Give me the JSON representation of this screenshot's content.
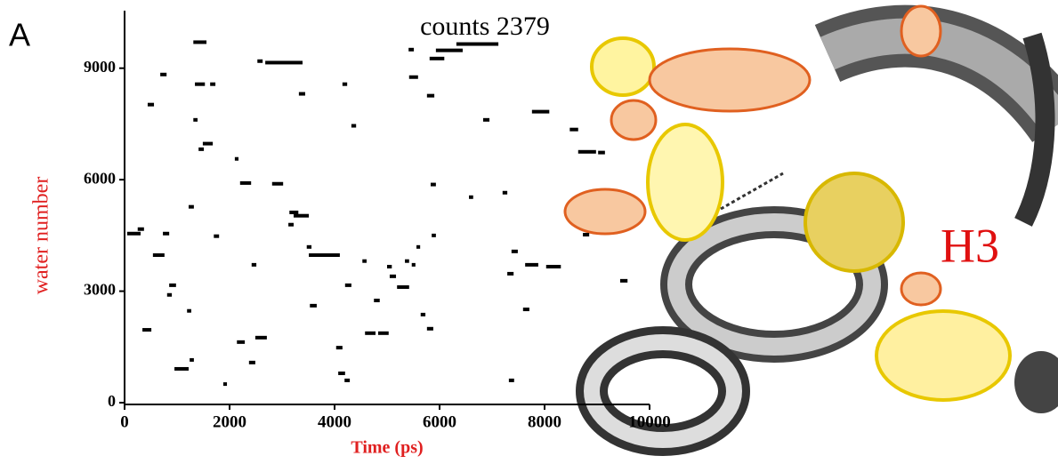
{
  "chart_data": {
    "type": "segment",
    "panel_label": "A",
    "annotation": "counts 2379",
    "structure_label": "H3",
    "xlabel": "Time (ps)",
    "ylabel": "water number",
    "xlim": [
      0,
      10000
    ],
    "xticks": [
      0,
      2000,
      4000,
      6000,
      8000,
      10000
    ],
    "ylim": [
      0,
      10500
    ],
    "yticks": [
      0,
      3000,
      6000,
      9000
    ],
    "color": "#000000",
    "x": [
      50,
      250,
      540,
      340,
      730,
      810,
      850,
      950,
      1240,
      1190,
      1220,
      440,
      680,
      1310,
      1410,
      1490,
      1310,
      1340,
      1630,
      1700,
      1880,
      2140,
      2100,
      2200,
      2420,
      2370,
      2490,
      2530,
      2680,
      2810,
      3120,
      3140,
      3220,
      3320,
      3510,
      3470,
      3530,
      4030,
      4070,
      4200,
      4190,
      4150,
      4320,
      4580,
      4830,
      4530,
      4750,
      5000,
      5050,
      5190,
      5340,
      5470,
      5560,
      5640,
      5410,
      5420,
      5760,
      5850,
      5760,
      5830,
      5810,
      5930,
      6320,
      6560,
      6830,
      7200,
      7290,
      7370,
      7320,
      7590,
      7630,
      7760,
      8030,
      8480,
      8640,
      9020,
      9440,
      8730
    ],
    "x_end": [
      305,
      370,
      760,
      510,
      850,
      900,
      980,
      1220,
      1320,
      1270,
      1320,
      560,
      800,
      1560,
      1510,
      1680,
      1390,
      1530,
      1730,
      1800,
      1950,
      2290,
      2170,
      2410,
      2510,
      2490,
      2710,
      2630,
      3390,
      3020,
      3220,
      3310,
      3510,
      3440,
      4100,
      3560,
      3660,
      4150,
      4200,
      4320,
      4290,
      4240,
      4410,
      4780,
      5030,
      4610,
      4860,
      5090,
      5170,
      5420,
      5420,
      5540,
      5630,
      5730,
      5510,
      5590,
      5880,
      5930,
      5900,
      5930,
      6090,
      6440,
      7120,
      6640,
      6950,
      7290,
      7410,
      7490,
      7420,
      7710,
      7880,
      8090,
      8310,
      8640,
      8980,
      9150,
      9580,
      8850
    ],
    "values": [
      4550,
      4670,
      3970,
      1960,
      4550,
      2900,
      3160,
      910,
      1150,
      2470,
      5270,
      8020,
      8830,
      9700,
      6820,
      6970,
      7610,
      8570,
      8570,
      4480,
      500,
      1630,
      6560,
      5910,
      3710,
      1080,
      1750,
      9190,
      9150,
      5890,
      4790,
      5120,
      5030,
      8310,
      3970,
      4190,
      2610,
      1480,
      790,
      3160,
      600,
      8570,
      7450,
      1870,
      1870,
      3810,
      2750,
      3660,
      3400,
      3110,
      3810,
      3710,
      4190,
      2370,
      9500,
      8760,
      1990,
      4500,
      8260,
      5870,
      9260,
      9480,
      9650,
      5530,
      7610,
      5650,
      3470,
      4070,
      600,
      2510,
      3710,
      7830,
      3660,
      7350,
      6750,
      6730,
      3280,
      4520
    ]
  }
}
